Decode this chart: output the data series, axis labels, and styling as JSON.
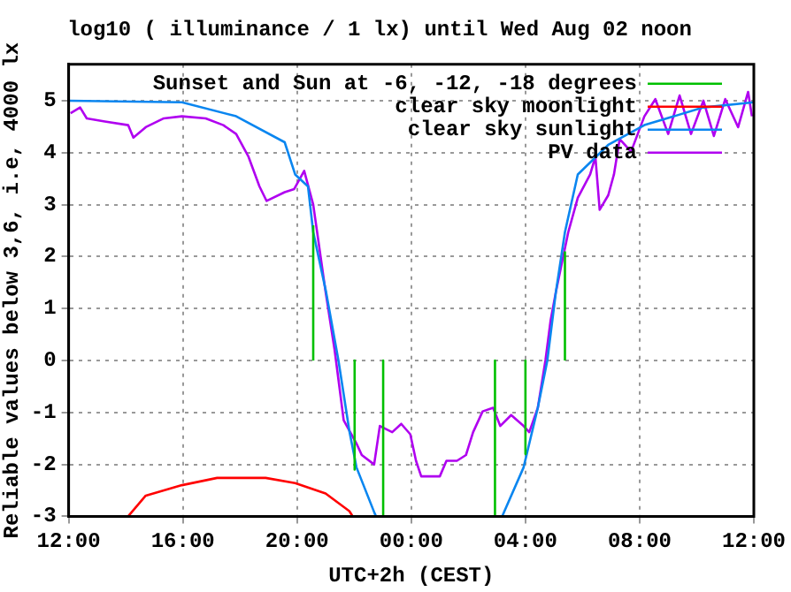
{
  "chart_data": {
    "type": "line",
    "title": "log10 ( illuminance / 1 lx) until Wed Aug 02 noon",
    "xlabel": "UTC+2h (CEST)",
    "ylabel": "Reliable values below 3,6, i.e, 4000 lx",
    "xlim": [
      "--08-01T12:00",
      "--08-02T12:00"
    ],
    "xticks": [
      {
        "value": "--08-01T12:00",
        "label": "12:00"
      },
      {
        "value": "--08-01T16:00",
        "label": "16:00"
      },
      {
        "value": "--08-01T20:00",
        "label": "20:00"
      },
      {
        "value": "--08-02T00:00",
        "label": "00:00"
      },
      {
        "value": "--08-02T04:00",
        "label": "04:00"
      },
      {
        "value": "--08-02T08:00",
        "label": "08:00"
      },
      {
        "value": "--08-02T12:00",
        "label": "12:00"
      }
    ],
    "ylim": [
      -3,
      5.7
    ],
    "yticks": [
      -3,
      -2,
      -1,
      0,
      1,
      2,
      3,
      4,
      5
    ],
    "grid": true,
    "legend": "top right",
    "line_style": "solid",
    "marker": "none",
    "series": [
      {
        "name": "Sunset and Sun at -6, -12, -18 degrees",
        "color": "#00c000",
        "x": [
          "--08-01T20:34",
          "--08-01T20:34",
          "--08-01T20:48",
          "--08-01T22:01",
          "--08-01T22:01",
          "--08-01T22:30",
          "--08-01T23:01",
          "--08-01T23:01",
          "--08-02T01:00",
          "--08-02T02:56",
          "--08-02T02:56",
          "--08-02T03:30",
          "--08-02T04:00",
          "--08-02T04:00",
          "--08-02T04:42",
          "--08-02T05:23",
          "--08-02T05:23"
        ],
        "values": [
          0,
          2.6,
          null,
          0,
          -2.1,
          null,
          0,
          -3,
          null,
          0,
          -3,
          null,
          0,
          -1.8,
          null,
          0,
          2.1
        ]
      },
      {
        "name": "clear sky moonlight",
        "color": "#ff0000",
        "x": [
          "--08-01T14:05",
          "--08-01T14:42",
          "--08-01T15:58",
          "--08-01T17:12",
          "--08-01T18:54",
          "--08-01T19:56",
          "--08-01T21:00",
          "--08-01T21:50",
          "--08-01T21:57"
        ],
        "values": [
          -3,
          -2.6,
          -2.4,
          -2.26,
          -2.26,
          -2.36,
          -2.56,
          -2.9,
          -3
        ]
      },
      {
        "name": "clear sky sunlight",
        "color": "#0a86f0",
        "x": [
          "--08-01T12:00",
          "--08-01T15:58",
          "--08-01T17:52",
          "--08-01T19:34",
          "--08-01T19:56",
          "--08-01T20:23",
          "--08-01T20:34",
          "--08-01T21:01",
          "--08-01T21:27",
          "--08-01T21:50",
          "--08-01T22:05",
          "--08-01T22:43",
          "--08-01T22:46",
          "--08-02T01:00",
          "--08-02T03:11",
          "--08-02T03:56",
          "--08-02T04:26",
          "--08-02T04:46",
          "--08-02T05:04",
          "--08-02T05:23",
          "--08-02T05:50",
          "--08-02T06:54",
          "--08-02T08:10",
          "--08-02T10:14",
          "--08-02T12:00"
        ],
        "values": [
          5,
          4.97,
          4.7,
          4.2,
          3.58,
          3.35,
          2.47,
          1.32,
          0,
          -1.36,
          -2.06,
          -2.94,
          -3,
          null,
          -3,
          -2.06,
          -0.91,
          0,
          1.32,
          2.47,
          3.58,
          4.15,
          4.53,
          4.87,
          4.97
        ]
      },
      {
        "name": "PV data",
        "color": "#b000f0",
        "x": [
          "--08-01T12:04",
          "--08-01T12:24",
          "--08-01T12:38",
          "--08-01T13:16",
          "--08-01T14:05",
          "--08-01T14:16",
          "--08-01T14:42",
          "--08-01T15:20",
          "--08-01T15:58",
          "--08-01T16:48",
          "--08-01T17:25",
          "--08-01T17:52",
          "--08-01T18:18",
          "--08-01T18:41",
          "--08-01T18:56",
          "--08-01T19:34",
          "--08-01T19:54",
          "--08-01T20:15",
          "--08-01T20:34",
          "--08-01T21:00",
          "--08-01T21:19",
          "--08-01T21:38",
          "--08-01T22:05",
          "--08-01T22:16",
          "--08-01T22:42",
          "--08-01T22:54",
          "--08-01T23:20",
          "--08-01T23:39",
          "--08-01T23:58",
          "--08-02T00:10",
          "--08-02T00:21",
          "--08-02T01:00",
          "--08-02T01:14",
          "--08-02T01:36",
          "--08-02T01:55",
          "--08-02T02:10",
          "--08-02T02:30",
          "--08-02T02:52",
          "--08-02T03:07",
          "--08-02T03:30",
          "--08-02T03:56",
          "--08-02T04:08",
          "--08-02T04:26",
          "--08-02T04:42",
          "--08-02T04:53",
          "--08-02T05:04",
          "--08-02T05:30",
          "--08-02T05:50",
          "--08-02T06:16",
          "--08-02T06:27",
          "--08-02T06:36",
          "--08-02T06:54",
          "--08-02T07:06",
          "--08-02T07:18",
          "--08-02T07:42",
          "--08-02T08:10",
          "--08-02T08:33",
          "--08-02T09:00",
          "--08-02T09:24",
          "--08-02T09:48",
          "--08-02T10:14",
          "--08-02T10:36",
          "--08-02T11:00",
          "--08-02T11:27",
          "--08-02T11:48",
          "--08-02T11:56"
        ],
        "values": [
          4.76,
          4.87,
          4.66,
          4.6,
          4.53,
          4.29,
          4.49,
          4.66,
          4.7,
          4.66,
          4.53,
          4.36,
          3.92,
          3.35,
          3.07,
          3.24,
          3.3,
          3.65,
          3.0,
          1.32,
          0.2,
          -1.15,
          -1.6,
          -1.82,
          -2.0,
          -1.26,
          -1.38,
          -1.22,
          -1.42,
          -1.93,
          -2.23,
          -2.23,
          -1.93,
          -1.93,
          -1.82,
          -1.38,
          -0.98,
          -0.91,
          -1.26,
          -1.05,
          -1.26,
          -1.38,
          -0.91,
          0,
          0.78,
          1.32,
          2.47,
          3.13,
          3.58,
          3.92,
          2.9,
          3.18,
          3.58,
          4.26,
          4.02,
          4.7,
          5.03,
          4.36,
          5.1,
          4.36,
          5.0,
          4.32,
          5.03,
          4.49,
          5.17,
          4.7
        ]
      }
    ]
  }
}
